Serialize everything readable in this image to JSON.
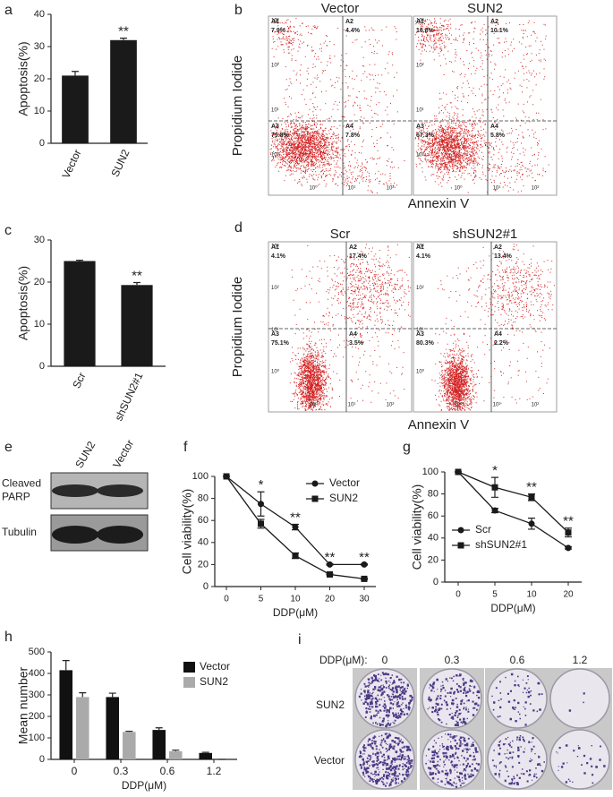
{
  "chart_data": [
    {
      "label": "a",
      "type": "bar",
      "ylabel": "Apoptosis(%)",
      "categories": [
        "Vector",
        "SUN2"
      ],
      "values": [
        21,
        32
      ],
      "errors": [
        1.3,
        0.6
      ],
      "significance": [
        null,
        "**"
      ],
      "color": "#1a1a1a",
      "ylim": [
        0,
        40
      ],
      "yticks": [
        0,
        10,
        20,
        30,
        40
      ]
    },
    {
      "label": "c",
      "type": "bar",
      "ylabel": "Apoptosis(%)",
      "categories": [
        "Scr",
        "shSUN2#1"
      ],
      "values": [
        25,
        19.3
      ],
      "errors": [
        0.2,
        0.6
      ],
      "significance": [
        null,
        "**"
      ],
      "color": "#1a1a1a",
      "ylim": [
        0,
        30
      ],
      "yticks": [
        0,
        10,
        20,
        30
      ]
    },
    {
      "label": "f",
      "type": "line",
      "ylabel": "Cell viability(%)",
      "xlabel": "DDP(μM)",
      "categories": [
        "0",
        "5",
        "10",
        "20",
        "30"
      ],
      "series": [
        {
          "name": "Vector",
          "color": "#1a1a1a",
          "marker": "circle",
          "values": [
            100,
            75,
            54,
            20,
            20
          ],
          "errors": [
            0,
            11,
            2.5,
            0.5,
            0.5
          ]
        },
        {
          "name": "SUN2",
          "color": "#1a1a1a",
          "marker": "square",
          "values": [
            100,
            57,
            28,
            11,
            7
          ],
          "errors": [
            0,
            4,
            2.5,
            0.5,
            0.5
          ]
        }
      ],
      "significance": [
        null,
        "*",
        "**",
        "**",
        "**"
      ],
      "ylim": [
        0,
        100
      ],
      "yticks": [
        0,
        20,
        40,
        60,
        80,
        100
      ],
      "legend": "upper right"
    },
    {
      "label": "g",
      "type": "line",
      "ylabel": "Cell viability(%)",
      "xlabel": "DDP(μM)",
      "categories": [
        "0",
        "5",
        "10",
        "20"
      ],
      "series": [
        {
          "name": "Scr",
          "color": "#1a1a1a",
          "marker": "circle",
          "values": [
            100,
            65,
            53,
            31
          ],
          "errors": [
            0,
            2,
            5,
            1
          ]
        },
        {
          "name": "shSUN2#1",
          "color": "#1a1a1a",
          "marker": "square",
          "values": [
            100,
            86,
            77,
            45
          ],
          "errors": [
            0,
            9,
            3,
            4
          ]
        }
      ],
      "significance": [
        null,
        "*",
        "**",
        "**"
      ],
      "ylim": [
        0,
        100
      ],
      "yticks": [
        0,
        20,
        40,
        60,
        80,
        100
      ],
      "legend": "lower left"
    },
    {
      "label": "h",
      "type": "grouped_bar",
      "ylabel": "Mean number",
      "xlabel": "DDP(μM)",
      "categories": [
        "0",
        "0.3",
        "0.6",
        "1.2"
      ],
      "series": [
        {
          "name": "Vector",
          "color": "#111111",
          "values": [
            415,
            290,
            137,
            30
          ],
          "errors": [
            45,
            18,
            10,
            3
          ]
        },
        {
          "name": "SUN2",
          "color": "#aaaaaa",
          "values": [
            290,
            128,
            38,
            0
          ],
          "errors": [
            20,
            3,
            5,
            0
          ]
        }
      ],
      "ylim": [
        0,
        500
      ],
      "yticks": [
        0,
        100,
        200,
        300,
        400,
        500
      ],
      "legend": "upper right"
    }
  ],
  "flow_panels": [
    {
      "label": "b",
      "xlabel": "Annexin V",
      "ylabel": "Propidium Iodide",
      "xticks": [
        "10⁰",
        "10¹",
        "10²"
      ],
      "yticks": [
        "10³",
        "10²",
        "10¹",
        "10⁰"
      ],
      "plots": [
        {
          "title": "Vector",
          "quadrants": [
            {
              "name": "A1",
              "value": "7.9%"
            },
            {
              "name": "A2",
              "value": "4.4%"
            },
            {
              "name": "A3",
              "value": "79.8%"
            },
            {
              "name": "A4",
              "value": "7.8%"
            }
          ]
        },
        {
          "title": "SUN2",
          "quadrants": [
            {
              "name": "A1",
              "value": "16.8%"
            },
            {
              "name": "A2",
              "value": "10.1%"
            },
            {
              "name": "A3",
              "value": "67.3%"
            },
            {
              "name": "A4",
              "value": "5.8%"
            }
          ]
        }
      ]
    },
    {
      "label": "d",
      "xlabel": "Annexin V",
      "ylabel": "Propidium Iodide",
      "xticks": [
        "10⁰",
        "10¹",
        "10²"
      ],
      "yticks": [
        "10³",
        "10²",
        "10¹",
        "10⁰"
      ],
      "plots": [
        {
          "title": "Scr",
          "quadrants": [
            {
              "name": "A1",
              "value": "4.1%"
            },
            {
              "name": "A2",
              "value": "17.4%"
            },
            {
              "name": "A3",
              "value": "75.1%"
            },
            {
              "name": "A4",
              "value": "3.5%"
            }
          ]
        },
        {
          "title": "shSUN2#1",
          "quadrants": [
            {
              "name": "A1",
              "value": "4.1%"
            },
            {
              "name": "A2",
              "value": "13.4%"
            },
            {
              "name": "A3",
              "value": "80.3%"
            },
            {
              "name": "A4",
              "value": "2.2%"
            }
          ]
        }
      ]
    }
  ],
  "western_blot": {
    "label": "e",
    "lanes": [
      "SUN2",
      "Vector"
    ],
    "rows": [
      [
        "Cleaved",
        "PARP"
      ],
      [
        "Tubulin"
      ]
    ]
  },
  "colony_assay": {
    "label": "i",
    "dose_label": "DDP(μM):",
    "doses": [
      "0",
      "0.3",
      "0.6",
      "1.2"
    ],
    "rows": [
      "SUN2",
      "Vector"
    ]
  }
}
